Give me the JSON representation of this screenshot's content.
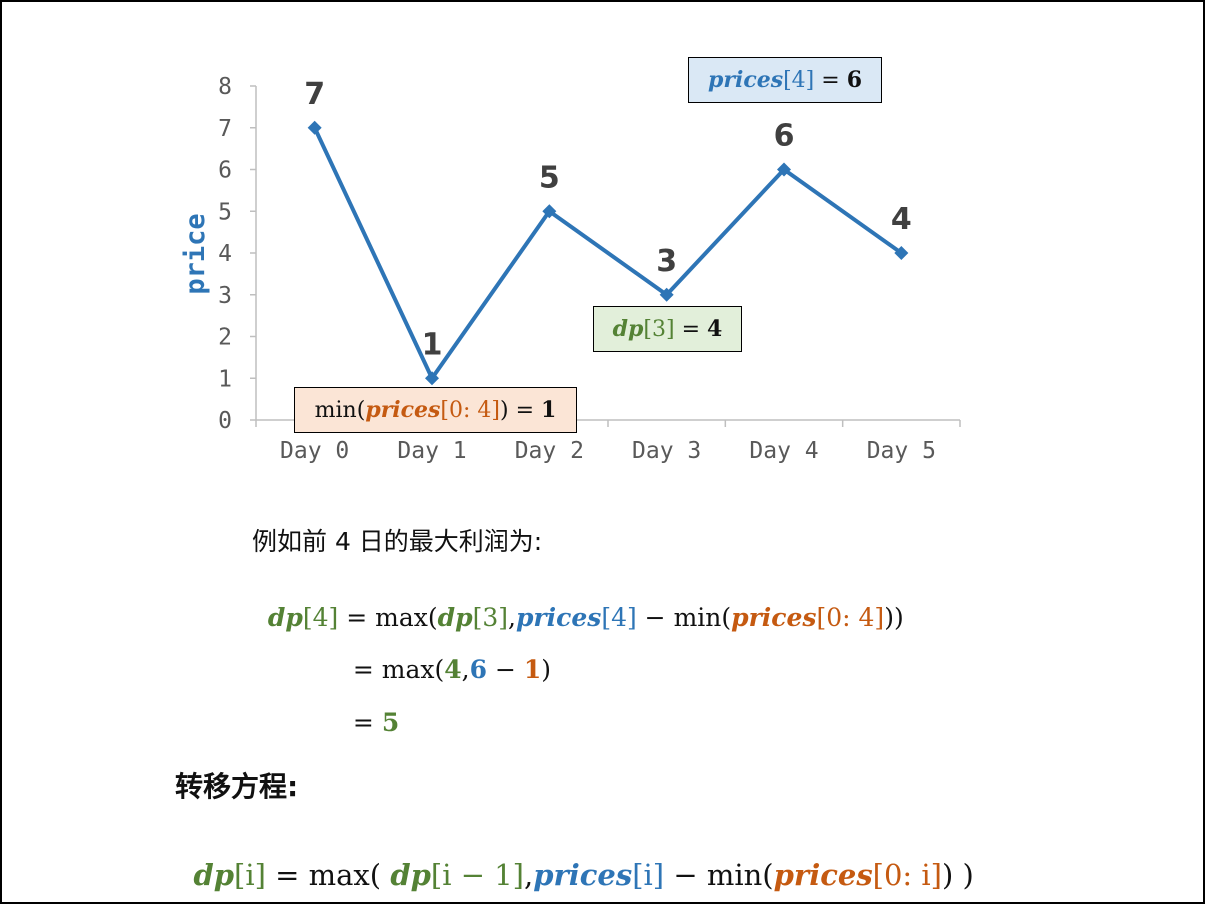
{
  "chart_data": {
    "type": "line",
    "categories": [
      "Day 0",
      "Day 1",
      "Day 2",
      "Day 3",
      "Day 4",
      "Day 5"
    ],
    "values": [
      7,
      1,
      5,
      3,
      6,
      4
    ],
    "data_labels": [
      "7",
      "1",
      "5",
      "3",
      "6",
      "4"
    ],
    "ylabel": "price",
    "ylim": [
      0,
      8
    ],
    "yticks": [
      "0",
      "1",
      "2",
      "3",
      "4",
      "5",
      "6",
      "7",
      "8"
    ],
    "grid": false,
    "legend": "none",
    "color": "#2e75b6"
  },
  "annotations": {
    "prices4": {
      "var": "prices",
      "idx": "[4]",
      "eq": " = ",
      "val": "6"
    },
    "dp3": {
      "var": "dp",
      "idx": "[3]",
      "eq": " = ",
      "val": "4"
    },
    "min": {
      "fn": "min(",
      "var": "prices",
      "idx": "[0: 4]",
      "close": ")",
      "eq": " = ",
      "val": "1"
    }
  },
  "example": {
    "intro": "例如前 4 日的最大利润为:",
    "line1": {
      "lhs_var": "dp",
      "lhs_idx": "[4]",
      "eq": " = max(",
      "a_var": "dp",
      "a_idx": "[3]",
      "comma": ",",
      "b_var": "prices",
      "b_idx": "[4]",
      "minus": " − min(",
      "c_var": "prices",
      "c_idx": "[0: 4]",
      "close": "))"
    },
    "line2": {
      "eq": "= max(",
      "a": "4",
      "comma": ",",
      "b": "6",
      "minus": " − ",
      "c": "1",
      "close": ")"
    },
    "line3": {
      "eq": "= ",
      "val": "5"
    }
  },
  "transition": {
    "title": "转移方程:",
    "lhs_var": "dp",
    "lhs_idx": "[i]",
    "eq": " = max( ",
    "a_var": "dp",
    "a_idx": "[i − 1]",
    "comma": ",",
    "b_var": "prices",
    "b_idx": "[i]",
    "minus": " − min(",
    "c_var": "prices",
    "c_idx": "[0: i]",
    "close": ") )"
  },
  "colors": {
    "green": "#548235",
    "blue": "#2e75b6",
    "orange": "#c55a11",
    "box_blue": "#dae8f5",
    "box_green": "#e2efda",
    "box_orange": "#fbe5d6"
  }
}
